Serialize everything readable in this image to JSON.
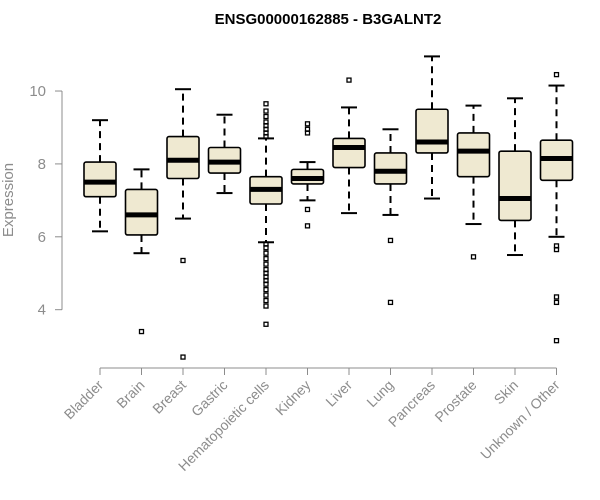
{
  "chart_data": {
    "type": "boxplot",
    "title": "ENSG00000162885 - B3GALNT2",
    "xlabel": "",
    "ylabel": "Expression",
    "ylim": [
      2.4,
      11.4
    ],
    "yticks": [
      4,
      6,
      8,
      10
    ],
    "grid": false,
    "categories": [
      "Bladder",
      "Brain",
      "Breast",
      "Gastric",
      "Hematopoietic cells",
      "Kidney",
      "Liver",
      "Lung",
      "Pancreas",
      "Prostate",
      "Skin",
      "Unknown / Other"
    ],
    "boxes": [
      {
        "name": "Bladder",
        "whislo": 6.15,
        "q1": 7.1,
        "med": 7.5,
        "q3": 8.05,
        "whishi": 9.2,
        "fliers": []
      },
      {
        "name": "Brain",
        "whislo": 5.55,
        "q1": 6.05,
        "med": 6.6,
        "q3": 7.3,
        "whishi": 7.85,
        "fliers": [
          3.4
        ]
      },
      {
        "name": "Breast",
        "whislo": 6.5,
        "q1": 7.6,
        "med": 8.1,
        "q3": 8.75,
        "whishi": 10.05,
        "fliers": [
          5.35,
          2.7
        ]
      },
      {
        "name": "Gastric",
        "whislo": 7.2,
        "q1": 7.75,
        "med": 8.05,
        "q3": 8.45,
        "whishi": 9.35,
        "fliers": []
      },
      {
        "name": "Hematopoietic cells",
        "whislo": 5.85,
        "q1": 6.9,
        "med": 7.3,
        "q3": 7.65,
        "whishi": 8.7,
        "fliers": [
          8.75,
          8.85,
          8.95,
          9.05,
          9.15,
          9.3,
          9.45,
          9.65,
          5.8,
          5.7,
          5.55,
          5.4,
          5.25,
          5.1,
          5.0,
          4.9,
          4.8,
          4.7,
          4.55,
          4.4,
          4.25,
          4.1,
          3.6
        ]
      },
      {
        "name": "Kidney",
        "whislo": 7.0,
        "q1": 7.45,
        "med": 7.6,
        "q3": 7.85,
        "whishi": 8.05,
        "fliers": [
          9.1,
          8.95,
          8.85,
          6.75,
          6.3
        ]
      },
      {
        "name": "Liver",
        "whislo": 6.65,
        "q1": 7.9,
        "med": 8.45,
        "q3": 8.7,
        "whishi": 9.55,
        "fliers": [
          10.3
        ]
      },
      {
        "name": "Lung",
        "whislo": 6.6,
        "q1": 7.45,
        "med": 7.8,
        "q3": 8.3,
        "whishi": 8.95,
        "fliers": [
          5.9,
          4.2
        ]
      },
      {
        "name": "Pancreas",
        "whislo": 7.05,
        "q1": 8.3,
        "med": 8.6,
        "q3": 9.5,
        "whishi": 10.95,
        "fliers": []
      },
      {
        "name": "Prostate",
        "whislo": 6.35,
        "q1": 7.65,
        "med": 8.35,
        "q3": 8.85,
        "whishi": 9.6,
        "fliers": [
          5.45
        ]
      },
      {
        "name": "Skin",
        "whislo": 5.5,
        "q1": 6.45,
        "med": 7.05,
        "q3": 8.35,
        "whishi": 9.8,
        "fliers": []
      },
      {
        "name": "Unknown / Other",
        "whislo": 6.0,
        "q1": 7.55,
        "med": 8.15,
        "q3": 8.65,
        "whishi": 10.15,
        "fliers": [
          10.45,
          5.75,
          5.65,
          4.35,
          4.2,
          3.15
        ]
      }
    ]
  }
}
